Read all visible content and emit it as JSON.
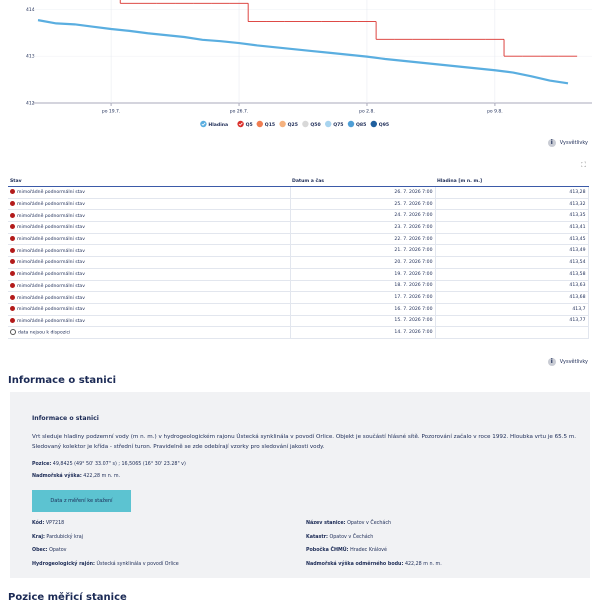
{
  "chart_data": {
    "type": "line",
    "x_ticks_are_categories": true,
    "categories": [
      null,
      null,
      null,
      null,
      "po 19.7.",
      null,
      null,
      null,
      null,
      null,
      null,
      "po 26.7.",
      null,
      null,
      null,
      null,
      null,
      null,
      "po 2.8.",
      null,
      null,
      null,
      null,
      null,
      null,
      "po 9.8.",
      null,
      null,
      null,
      null
    ],
    "series": [
      {
        "name": "Hladina",
        "color": "#5aaee0",
        "values": [
          413.77,
          413.7,
          413.68,
          413.63,
          413.58,
          413.54,
          413.49,
          413.45,
          413.41,
          413.35,
          413.32,
          413.28,
          413.23,
          413.19,
          413.15,
          413.11,
          413.07,
          413.03,
          412.99,
          412.94,
          412.9,
          412.86,
          412.82,
          412.78,
          412.74,
          412.7,
          412.65,
          412.57,
          412.48,
          412.42
        ]
      },
      {
        "name": "Q5",
        "color": "#d9302c",
        "step": true,
        "values": [
          null,
          null,
          null,
          null,
          null,
          414.13,
          414.13,
          414.13,
          414.13,
          414.13,
          414.13,
          414.13,
          413.74,
          413.74,
          413.74,
          413.74,
          413.74,
          413.74,
          413.74,
          413.36,
          413.36,
          413.36,
          413.36,
          413.36,
          413.36,
          413.36,
          413.0,
          413.0,
          413.0,
          413.0
        ]
      }
    ],
    "legend_items": [
      {
        "name": "Q15",
        "color": "#f07e52"
      },
      {
        "name": "Q25",
        "color": "#f5b27f"
      },
      {
        "name": "Q50",
        "color": "#d8d8d8"
      },
      {
        "name": "Q75",
        "color": "#a8d4ef"
      },
      {
        "name": "Q85",
        "color": "#4f9fd6"
      },
      {
        "name": "Q95",
        "color": "#1f5f9e"
      }
    ],
    "ylim": [
      412,
      414.2
    ],
    "yticks": [
      412,
      413,
      414
    ],
    "grid": true
  },
  "links": {
    "explanations_top": "Vysvětlivky",
    "explanations_bottom": "Vysvětlivky"
  },
  "table": {
    "header": [
      "Stav",
      "Datum a čas",
      "Hladina [m n. m.]"
    ],
    "rows": [
      [
        "mimořádně podnormální stav",
        "26. 7. 2026 7:00",
        "413,28"
      ],
      [
        "mimořádně podnormální stav",
        "25. 7. 2026 7:00",
        "413,32"
      ],
      [
        "mimořádně podnormální stav",
        "24. 7. 2026 7:00",
        "413,35"
      ],
      [
        "mimořádně podnormální stav",
        "23. 7. 2026 7:00",
        "413,41"
      ],
      [
        "mimořádně podnormální stav",
        "22. 7. 2026 7:00",
        "413,45"
      ],
      [
        "mimořádně podnormální stav",
        "21. 7. 2026 7:00",
        "413,49"
      ],
      [
        "mimořádně podnormální stav",
        "20. 7. 2026 7:00",
        "413,54"
      ],
      [
        "mimořádně podnormální stav",
        "19. 7. 2026 7:00",
        "413,58"
      ],
      [
        "mimořádně podnormální stav",
        "18. 7. 2026 7:00",
        "413,63"
      ],
      [
        "mimořádně podnormální stav",
        "17. 7. 2026 7:00",
        "413,68"
      ],
      [
        "mimořádně podnormální stav",
        "16. 7. 2026 7:00",
        "413,7"
      ],
      [
        "mimořádně podnormální stav",
        "15. 7. 2026 7:00",
        "413,77"
      ],
      [
        "data nejsou k dispozici",
        "14. 7. 2026 7:00",
        null
      ]
    ]
  },
  "station": {
    "heading": "Informace o stanici",
    "box_title": "Informace o stanici",
    "description": "Vrt sleduje hladiny podzemní vody (m n. m.) v hydrogeologickém rajonu Ústecká synklinála v povodí Orlice. Objekt je součástí hlásné sítě. Pozorování začalo v roce 1992. Hloubka vrtu je 65.5 m. Sledovaný kolektor je křída - střední turon. Pravidelně se zde odebírají vzorky pro sledování jakosti vody.",
    "position": {
      "label": "Pozice:",
      "value": "49,8425 (49° 50' 33.07\" s) ; 16,5065 (16° 30' 23.28\" v)"
    },
    "altitude": {
      "label": "Nadmořská výška:",
      "value": "422,28 m n. m."
    },
    "download": "Data z měření ke stažení",
    "left": [
      {
        "label": "Kód:",
        "value": "VP7218"
      },
      {
        "label": "Kraj:",
        "value": "Pardubický kraj"
      },
      {
        "label": "Obec:",
        "value": "Opatov"
      },
      {
        "label": "Hydrogeologický rajón:",
        "value": "Ústecká synklinála v povodí Orlice"
      }
    ],
    "right": [
      {
        "label": "Název stanice:",
        "value": "Opatov v Čechách"
      },
      {
        "label": "Katastr:",
        "value": "Opatov v Čechách"
      },
      {
        "label": "Pobočka ČHMÚ:",
        "value": "Hradec Králové"
      },
      {
        "label": "Nadmořská výška odměrného bodu:",
        "value": "422,28 m n. m."
      }
    ]
  },
  "next_heading": "Pozice měřicí stanice"
}
